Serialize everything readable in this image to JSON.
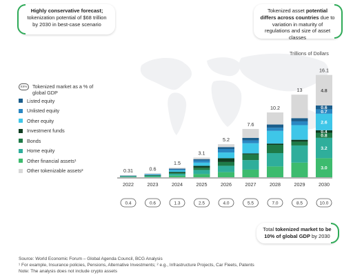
{
  "callouts": {
    "left": {
      "bold": "Highly conservative forecast;",
      "rest": "tokenization potential of $68 trillion by 2030 in best-case scenario"
    },
    "right": {
      "pre": "Tokenized asset ",
      "bold": "potential differs across countries",
      "rest": " due to variation in maturity of regulations and size of asset classes"
    },
    "bottom": {
      "pre": "Total ",
      "bold1": "tokenized market to be",
      "bold2": "10% of global GDP",
      "rest": " by 2030"
    }
  },
  "unit_label": "Trillions of Dollars",
  "legend": {
    "gdp_icon": "XX%",
    "gdp_label": "Tokenized market as a % of global GDP",
    "items": [
      {
        "label": "Listed equity",
        "color": "#1b5e8c"
      },
      {
        "label": "Unlisted equity",
        "color": "#2a87c2"
      },
      {
        "label": "Other equity",
        "color": "#3ec6e8"
      },
      {
        "label": "Investment funds",
        "color": "#0f3d21"
      },
      {
        "label": "Bonds",
        "color": "#1e7a47"
      },
      {
        "label": "Home equity",
        "color": "#2fae9b"
      },
      {
        "label": "Other financial assets¹",
        "color": "#3dbb6e"
      },
      {
        "label": "Other tokenizable assets²",
        "color": "#d8d8d8"
      }
    ]
  },
  "chart_data": {
    "type": "bar",
    "stacked": true,
    "categories": [
      "2022",
      "2023",
      "2024",
      "2025",
      "2026",
      "2027",
      "2028",
      "2029",
      "2030"
    ],
    "totals": [
      0.31,
      0.6,
      1.5,
      3.1,
      5.2,
      7.6,
      10.2,
      13.0,
      16.1
    ],
    "gdp_percent": [
      "0.4",
      "0.6",
      "1.3",
      "2.5",
      "4.0",
      "5.5",
      "7.0",
      "8.5",
      "10.0"
    ],
    "series": [
      {
        "name": "Other financial assets¹",
        "color": "#3dbb6e",
        "values": [
          0.05,
          0.1,
          0.25,
          0.5,
          0.8,
          1.2,
          1.7,
          2.3,
          3.0
        ],
        "labels": [
          "",
          "",
          "",
          "",
          "",
          "",
          "",
          "",
          "3.0"
        ]
      },
      {
        "name": "Home equity",
        "color": "#2fae9b",
        "values": [
          0.06,
          0.12,
          0.3,
          0.65,
          1.0,
          1.5,
          2.1,
          2.7,
          3.2
        ],
        "labels": [
          "",
          "",
          "",
          "",
          "",
          "",
          "",
          "",
          "3.2"
        ]
      },
      {
        "name": "Bonds",
        "color": "#1e7a47",
        "values": [
          0.03,
          0.06,
          0.15,
          0.35,
          0.6,
          0.9,
          1.3,
          0.6,
          0.8
        ],
        "labels": [
          "",
          "",
          "",
          "",
          "",
          "",
          "",
          "",
          "0.8"
        ]
      },
      {
        "name": "Investment funds",
        "color": "#0f3d21",
        "values": [
          0.03,
          0.06,
          0.15,
          0.3,
          0.6,
          0.15,
          0.2,
          0.3,
          0.4
        ],
        "labels": [
          "",
          "",
          "",
          "",
          "",
          "",
          "",
          "",
          "0.4"
        ]
      },
      {
        "name": "Other equity",
        "color": "#3ec6e8",
        "values": [
          0.04,
          0.08,
          0.25,
          0.5,
          0.9,
          1.6,
          2.0,
          2.3,
          2.6
        ],
        "labels": [
          "",
          "",
          "",
          "",
          "",
          "",
          "",
          "",
          "2.6"
        ]
      },
      {
        "name": "Unlisted equity",
        "color": "#2a87c2",
        "values": [
          0.03,
          0.06,
          0.15,
          0.35,
          0.55,
          0.45,
          0.5,
          0.6,
          0.7
        ],
        "labels": [
          "",
          "",
          "",
          "",
          "",
          "",
          "",
          "",
          "0.7"
        ]
      },
      {
        "name": "Listed equity",
        "color": "#1b5e8c",
        "values": [
          0.02,
          0.04,
          0.1,
          0.2,
          0.3,
          0.4,
          0.5,
          0.5,
          0.6
        ],
        "labels": [
          "",
          "",
          "",
          "",
          "",
          "",
          "",
          "",
          "0.6"
        ]
      },
      {
        "name": "Other tokenizable assets²",
        "color": "#d8d8d8",
        "values": [
          0.05,
          0.08,
          0.15,
          0.25,
          0.45,
          1.4,
          1.9,
          3.7,
          4.8
        ],
        "labels": [
          "",
          "",
          "",
          "",
          "",
          "",
          "",
          "",
          "4.8"
        ]
      }
    ],
    "ylim": [
      0,
      16.5
    ]
  },
  "footer": {
    "source": "Source: World Economic Forum – Global Agenda Council, BCG Analysis",
    "note1": "¹ For example, Insurance policies, Pensions, Alternative Investments; ² e.g., Infrastructure Projects, Car Fleets, Patents",
    "note2": "Note: The analysis does not include crypto assets"
  }
}
